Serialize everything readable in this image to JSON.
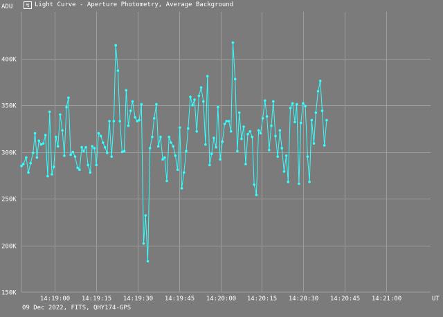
{
  "window": {
    "title": "Light Curve - Aperture Photometry, Average Background",
    "icon": "app-icon"
  },
  "footer": {
    "info": "09 Dec 2022, FITS, QHY174-GPS"
  },
  "colors": {
    "background": "#7b7b7b",
    "grid": "#9c9c9c",
    "series": "#33ffff",
    "text": "#ffffff"
  },
  "chart_data": {
    "type": "line",
    "title": "Light Curve - Aperture Photometry, Average Background",
    "ylabel": "ADU",
    "xlabel": "UT",
    "ylim": [
      150000,
      450000
    ],
    "xlim": [
      "14:18:48",
      "14:21:16"
    ],
    "grid": true,
    "y_ticks": [
      {
        "v": 150000,
        "label": "150K"
      },
      {
        "v": 200000,
        "label": "200K"
      },
      {
        "v": 250000,
        "label": "250K"
      },
      {
        "v": 300000,
        "label": "300K"
      },
      {
        "v": 350000,
        "label": "350K"
      },
      {
        "v": 400000,
        "label": "400K"
      }
    ],
    "x_ticks": [
      {
        "t": "14:19:00",
        "label": "14:19:00"
      },
      {
        "t": "14:19:15",
        "label": "14:19:15"
      },
      {
        "t": "14:19:30",
        "label": "14:19:30"
      },
      {
        "t": "14:19:45",
        "label": "14:19:45"
      },
      {
        "t": "14:20:00",
        "label": "14:20:00"
      },
      {
        "t": "14:20:15",
        "label": "14:20:15"
      },
      {
        "t": "14:20:30",
        "label": "14:20:30"
      },
      {
        "t": "14:20:45",
        "label": "14:20:45"
      },
      {
        "t": "14:21:00",
        "label": "14:21:00"
      }
    ],
    "series": [
      {
        "color": "#33ffff",
        "points": [
          [
            "14:18:48.0",
            285000
          ],
          [
            "14:18:48.7",
            287000
          ],
          [
            "14:18:49.7",
            294000
          ],
          [
            "14:18:50.5",
            278000
          ],
          [
            "14:18:51.3",
            288000
          ],
          [
            "14:18:52.2",
            299000
          ],
          [
            "14:18:52.9",
            320000
          ],
          [
            "14:18:53.6",
            294000
          ],
          [
            "14:18:54.3",
            312000
          ],
          [
            "14:18:55.1",
            308000
          ],
          [
            "14:18:55.9",
            309000
          ],
          [
            "14:18:56.7",
            318000
          ],
          [
            "14:18:57.5",
            274000
          ],
          [
            "14:18:58.2",
            343000
          ],
          [
            "14:18:59.0",
            276000
          ],
          [
            "14:18:59.7",
            284000
          ],
          [
            "14:19:00.5",
            316000
          ],
          [
            "14:19:01.2",
            306000
          ],
          [
            "14:19:02.0",
            340000
          ],
          [
            "14:19:02.8",
            323000
          ],
          [
            "14:19:03.5",
            296000
          ],
          [
            "14:19:04.3",
            348000
          ],
          [
            "14:19:05.0",
            358000
          ],
          [
            "14:19:05.8",
            297000
          ],
          [
            "14:19:06.6",
            300000
          ],
          [
            "14:19:07.4",
            295000
          ],
          [
            "14:19:08.3",
            283000
          ],
          [
            "14:19:09.0",
            281000
          ],
          [
            "14:19:09.8",
            305000
          ],
          [
            "14:19:10.5",
            301000
          ],
          [
            "14:19:11.3",
            305000
          ],
          [
            "14:19:12.1",
            286000
          ],
          [
            "14:19:12.9",
            278000
          ],
          [
            "14:19:13.6",
            306000
          ],
          [
            "14:19:14.4",
            304000
          ],
          [
            "14:19:15.1",
            286000
          ],
          [
            "14:19:15.9",
            320000
          ],
          [
            "14:19:16.7",
            317000
          ],
          [
            "14:19:17.5",
            310000
          ],
          [
            "14:19:18.2",
            305000
          ],
          [
            "14:19:19.0",
            299000
          ],
          [
            "14:19:19.8",
            333000
          ],
          [
            "14:19:20.6",
            295000
          ],
          [
            "14:19:21.4",
            333000
          ],
          [
            "14:19:22.1",
            414000
          ],
          [
            "14:19:22.9",
            387000
          ],
          [
            "14:19:23.6",
            333000
          ],
          [
            "14:19:24.4",
            300000
          ],
          [
            "14:19:25.2",
            301000
          ],
          [
            "14:19:25.9",
            366000
          ],
          [
            "14:19:26.7",
            328000
          ],
          [
            "14:19:27.5",
            344000
          ],
          [
            "14:19:28.2",
            354000
          ],
          [
            "14:19:29.1",
            337000
          ],
          [
            "14:19:29.9",
            333000
          ],
          [
            "14:19:30.6",
            334000
          ],
          [
            "14:19:31.4",
            351000
          ],
          [
            "14:19:32.2",
            202000
          ],
          [
            "14:19:32.9",
            232000
          ],
          [
            "14:19:33.7",
            183000
          ],
          [
            "14:19:34.5",
            304000
          ],
          [
            "14:19:35.3",
            316000
          ],
          [
            "14:19:36.0",
            336000
          ],
          [
            "14:19:36.8",
            351000
          ],
          [
            "14:19:37.5",
            306000
          ],
          [
            "14:19:38.3",
            316000
          ],
          [
            "14:19:39.1",
            292000
          ],
          [
            "14:19:39.8",
            294000
          ],
          [
            "14:19:40.6",
            269000
          ],
          [
            "14:19:41.4",
            316000
          ],
          [
            "14:19:42.1",
            310000
          ],
          [
            "14:19:42.9",
            306000
          ],
          [
            "14:19:43.7",
            296000
          ],
          [
            "14:19:44.5",
            281000
          ],
          [
            "14:19:45.3",
            326000
          ],
          [
            "14:19:46.0",
            261000
          ],
          [
            "14:19:46.8",
            278000
          ],
          [
            "14:19:47.6",
            301000
          ],
          [
            "14:19:48.3",
            325000
          ],
          [
            "14:19:49.1",
            359000
          ],
          [
            "14:19:49.9",
            350000
          ],
          [
            "14:19:50.6",
            356000
          ],
          [
            "14:19:51.4",
            322000
          ],
          [
            "14:19:52.2",
            360000
          ],
          [
            "14:19:53.0",
            369000
          ],
          [
            "14:19:53.8",
            354000
          ],
          [
            "14:19:54.6",
            308000
          ],
          [
            "14:19:55.3",
            381000
          ],
          [
            "14:19:56.1",
            286000
          ],
          [
            "14:19:56.8",
            298000
          ],
          [
            "14:19:57.6",
            315000
          ],
          [
            "14:19:58.4",
            305000
          ],
          [
            "14:19:59.1",
            348000
          ],
          [
            "14:19:59.9",
            292000
          ],
          [
            "14:20:00.7",
            311000
          ],
          [
            "14:20:01.5",
            330000
          ],
          [
            "14:20:02.2",
            333000
          ],
          [
            "14:20:03.0",
            333000
          ],
          [
            "14:20:03.8",
            322000
          ],
          [
            "14:20:04.5",
            417000
          ],
          [
            "14:20:05.3",
            378000
          ],
          [
            "14:20:06.1",
            301000
          ],
          [
            "14:20:06.8",
            342000
          ],
          [
            "14:20:07.6",
            314000
          ],
          [
            "14:20:08.4",
            327000
          ],
          [
            "14:20:09.1",
            287000
          ],
          [
            "14:20:09.9",
            319000
          ],
          [
            "14:20:10.7",
            322000
          ],
          [
            "14:20:11.5",
            316000
          ],
          [
            "14:20:12.2",
            265000
          ],
          [
            "14:20:13.0",
            254000
          ],
          [
            "14:20:13.8",
            323000
          ],
          [
            "14:20:14.5",
            320000
          ],
          [
            "14:20:15.3",
            336000
          ],
          [
            "14:20:16.1",
            355000
          ],
          [
            "14:20:16.8",
            338000
          ],
          [
            "14:20:17.6",
            302000
          ],
          [
            "14:20:18.4",
            328000
          ],
          [
            "14:20:19.1",
            354000
          ],
          [
            "14:20:19.9",
            317000
          ],
          [
            "14:20:20.7",
            295000
          ],
          [
            "14:20:21.5",
            323000
          ],
          [
            "14:20:22.2",
            304000
          ],
          [
            "14:20:23.0",
            279000
          ],
          [
            "14:20:23.8",
            296000
          ],
          [
            "14:20:24.5",
            268000
          ],
          [
            "14:20:25.3",
            347000
          ],
          [
            "14:20:26.1",
            352000
          ],
          [
            "14:20:26.9",
            332000
          ],
          [
            "14:20:27.6",
            351000
          ],
          [
            "14:20:28.4",
            266000
          ],
          [
            "14:20:29.1",
            331000
          ],
          [
            "14:20:29.9",
            352000
          ],
          [
            "14:20:30.7",
            349000
          ],
          [
            "14:20:31.5",
            295000
          ],
          [
            "14:20:32.2",
            268000
          ],
          [
            "14:20:33.0",
            334000
          ],
          [
            "14:20:33.8",
            309000
          ],
          [
            "14:20:34.5",
            342000
          ],
          [
            "14:20:35.3",
            365000
          ],
          [
            "14:20:36.1",
            376000
          ],
          [
            "14:20:36.8",
            344000
          ],
          [
            "14:20:37.6",
            307000
          ],
          [
            "14:20:38.4",
            334000
          ]
        ]
      }
    ]
  }
}
